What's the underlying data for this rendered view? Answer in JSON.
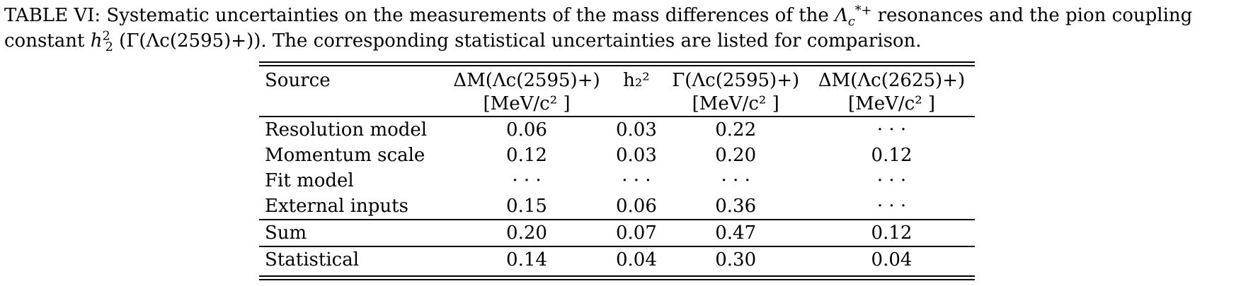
{
  "caption": {
    "label": "TABLE VI:",
    "text_before": "Systematic uncertainties on the measurements of the mass differences of the",
    "lambda": "Λ",
    "lambda_sub": "c",
    "lambda_sup": "*+",
    "text_middle": "resonances and the pion coupling constant",
    "h": "h",
    "h_sub": "2",
    "h_sup": "2",
    "paren_expr": "(Γ(Λc(2595)+)).",
    "text_after": "The corresponding statistical uncertainties are listed for comparison."
  },
  "table": {
    "headers": [
      {
        "line1": "Source",
        "line2": ""
      },
      {
        "line1": "ΔM(Λc(2595)+)",
        "line2": "[MeV/c² ]"
      },
      {
        "line1": "h₂²",
        "line2": ""
      },
      {
        "line1": "Γ(Λc(2595)+)",
        "line2": "[MeV/c² ]"
      },
      {
        "line1": "ΔM(Λc(2625)+)",
        "line2": "[MeV/c² ]"
      }
    ],
    "rows": [
      {
        "source": "Resolution model",
        "dm2595": "0.06",
        "h2": "0.03",
        "gamma": "0.22",
        "dm2625": "· · ·"
      },
      {
        "source": "Momentum scale",
        "dm2595": "0.12",
        "h2": "0.03",
        "gamma": "0.20",
        "dm2625": "0.12"
      },
      {
        "source": "Fit model",
        "dm2595": "· · ·",
        "h2": "· · ·",
        "gamma": "· · ·",
        "dm2625": "· · ·"
      },
      {
        "source": "External inputs",
        "dm2595": "0.15",
        "h2": "0.06",
        "gamma": "0.36",
        "dm2625": "· · ·"
      }
    ],
    "sum": {
      "source": "Sum",
      "dm2595": "0.20",
      "h2": "0.07",
      "gamma": "0.47",
      "dm2625": "0.12"
    },
    "statistical": {
      "source": "Statistical",
      "dm2595": "0.14",
      "h2": "0.04",
      "gamma": "0.30",
      "dm2625": "0.04"
    }
  }
}
